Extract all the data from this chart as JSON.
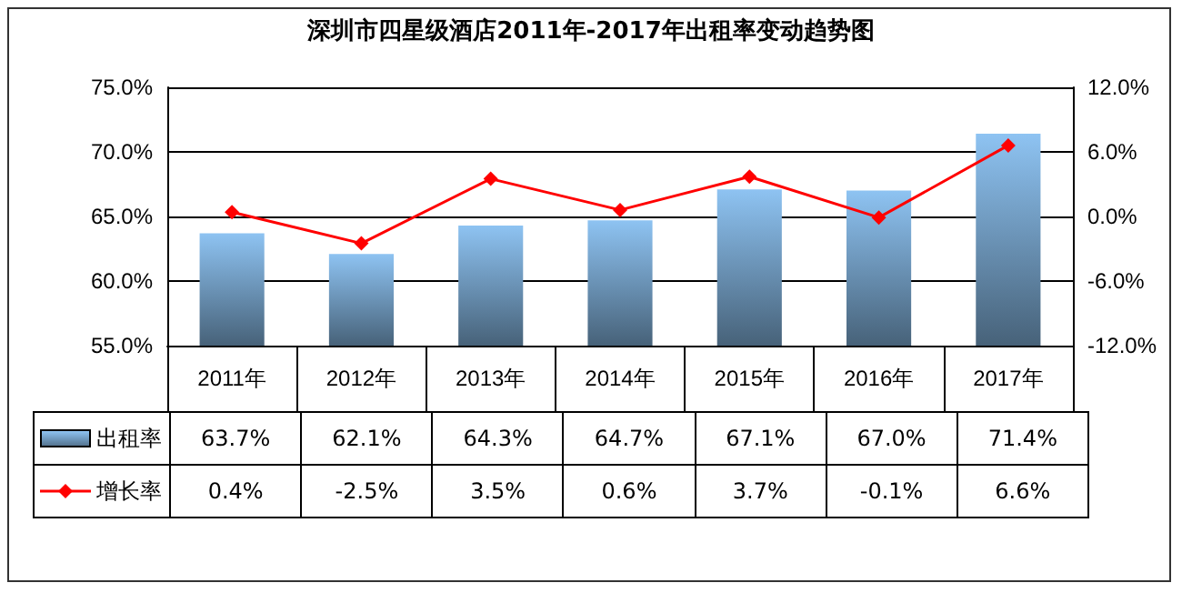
{
  "chart_data": {
    "type": "bar",
    "title": "深圳市四星级酒店2011年-2017年出租率变动趋势图",
    "categories": [
      "2011年",
      "2012年",
      "2013年",
      "2014年",
      "2015年",
      "2016年",
      "2017年"
    ],
    "series": [
      {
        "name": "出租率",
        "color": "#8ec3f2",
        "values": [
          63.7,
          62.1,
          64.3,
          64.7,
          67.1,
          67.0,
          71.4
        ],
        "value_labels": [
          "63.7%",
          "62.1%",
          "64.3%",
          "64.7%",
          "67.1%",
          "67.0%",
          "71.4%"
        ]
      },
      {
        "name": "增长率",
        "type": "line",
        "axis": "y2",
        "color": "#ff0000",
        "values": [
          0.4,
          -2.5,
          3.5,
          0.6,
          3.7,
          -0.1,
          6.6
        ],
        "value_labels": [
          "0.4%",
          "-2.5%",
          "3.5%",
          "0.6%",
          "3.7%",
          "-0.1%",
          "6.6%"
        ]
      }
    ],
    "ylim": [
      55,
      75
    ],
    "yticks": [
      {
        "value": 55,
        "label": "55.0%"
      },
      {
        "value": 60,
        "label": "60.0%"
      },
      {
        "value": 65,
        "label": "65.0%"
      },
      {
        "value": 70,
        "label": "70.0%"
      },
      {
        "value": 75,
        "label": "75.0%"
      }
    ],
    "y2lim": [
      -12,
      12
    ],
    "y2ticks": [
      {
        "value": -12,
        "label": "-12.0%"
      },
      {
        "value": -6,
        "label": "-6.0%"
      },
      {
        "value": 0,
        "label": "0.0%"
      },
      {
        "value": 6,
        "label": "6.0%"
      },
      {
        "value": 12,
        "label": "12.0%"
      }
    ],
    "grid": "y",
    "legend": "bottom left",
    "marker": "diamond"
  }
}
